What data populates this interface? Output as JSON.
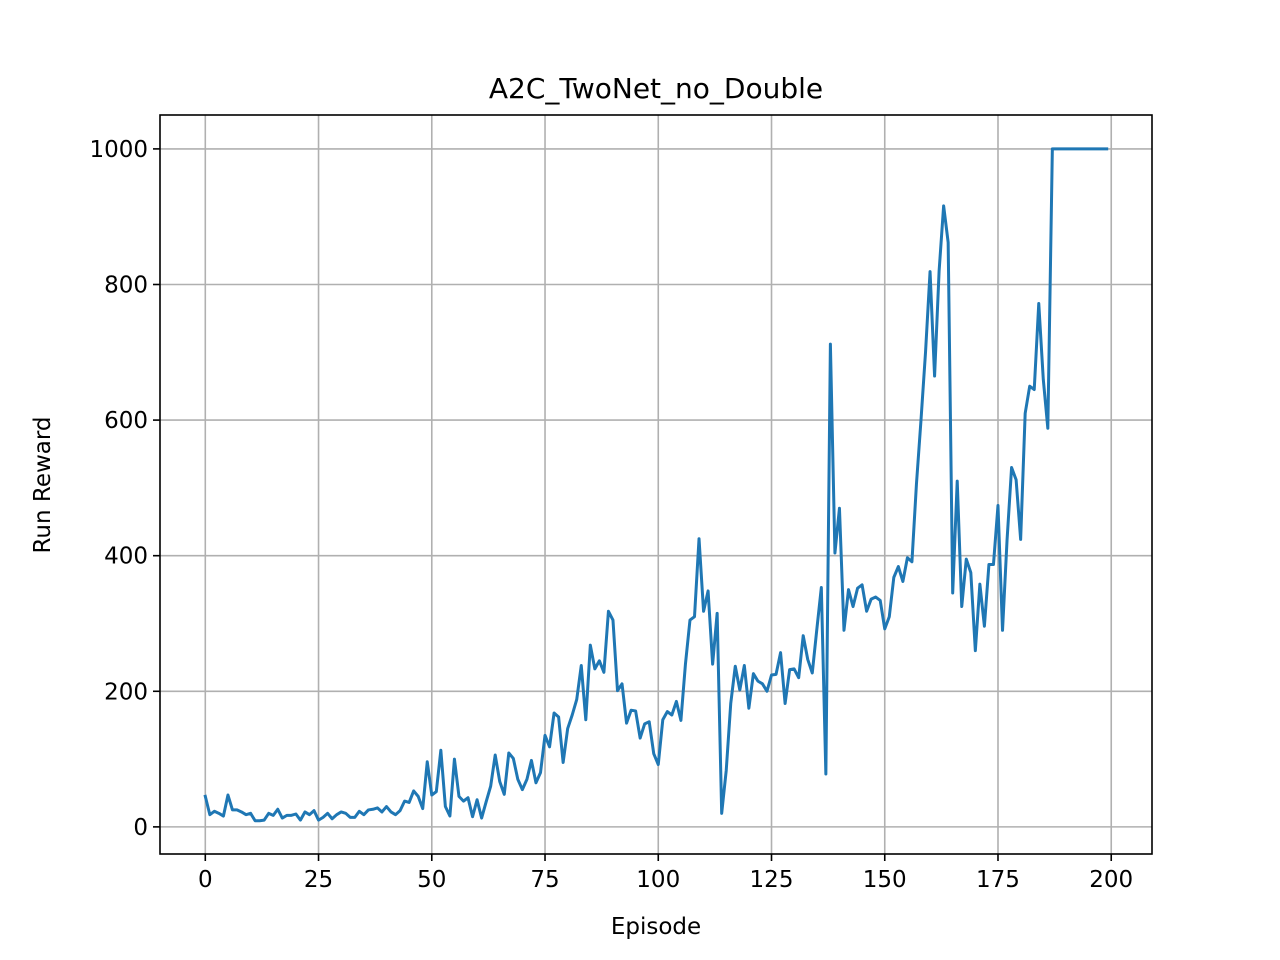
{
  "chart_data": {
    "type": "line",
    "title": "A2C_TwoNet_no_Double",
    "xlabel": "Episode",
    "ylabel": "Run Reward",
    "xlim": [
      -10,
      209
    ],
    "ylim": [
      -40,
      1050
    ],
    "xticks": [
      0,
      25,
      50,
      75,
      100,
      125,
      150,
      175,
      200
    ],
    "yticks": [
      0,
      200,
      400,
      600,
      800,
      1000
    ],
    "grid": true,
    "legend": "none",
    "series_color": "#1f77b4",
    "series": [
      {
        "name": "",
        "x": [
          0,
          1,
          2,
          3,
          4,
          5,
          6,
          7,
          8,
          9,
          10,
          11,
          12,
          13,
          14,
          15,
          16,
          17,
          18,
          19,
          20,
          21,
          22,
          23,
          24,
          25,
          26,
          27,
          28,
          29,
          30,
          31,
          32,
          33,
          34,
          35,
          36,
          37,
          38,
          39,
          40,
          41,
          42,
          43,
          44,
          45,
          46,
          47,
          48,
          49,
          50,
          51,
          52,
          53,
          54,
          55,
          56,
          57,
          58,
          59,
          60,
          61,
          62,
          63,
          64,
          65,
          66,
          67,
          68,
          69,
          70,
          71,
          72,
          73,
          74,
          75,
          76,
          77,
          78,
          79,
          80,
          81,
          82,
          83,
          84,
          85,
          86,
          87,
          88,
          89,
          90,
          91,
          92,
          93,
          94,
          95,
          96,
          97,
          98,
          99,
          100,
          101,
          102,
          103,
          104,
          105,
          106,
          107,
          108,
          109,
          110,
          111,
          112,
          113,
          114,
          115,
          116,
          117,
          118,
          119,
          120,
          121,
          122,
          123,
          124,
          125,
          126,
          127,
          128,
          129,
          130,
          131,
          132,
          133,
          134,
          135,
          136,
          137,
          138,
          139,
          140,
          141,
          142,
          143,
          144,
          145,
          146,
          147,
          148,
          149,
          150,
          151,
          152,
          153,
          154,
          155,
          156,
          157,
          158,
          159,
          160,
          161,
          162,
          163,
          164,
          165,
          166,
          167,
          168,
          169,
          170,
          171,
          172,
          173,
          174,
          175,
          176,
          177,
          178,
          179,
          180,
          181,
          182,
          183,
          184,
          185,
          186,
          187,
          188,
          189,
          190,
          191,
          192,
          193,
          194,
          195,
          196,
          197,
          198,
          199
        ],
        "values": [
          45,
          18,
          23,
          20,
          16,
          47,
          25,
          25,
          22,
          18,
          20,
          9,
          9,
          10,
          20,
          17,
          26,
          13,
          17,
          17,
          19,
          10,
          22,
          18,
          24,
          10,
          14,
          20,
          12,
          18,
          22,
          20,
          14,
          14,
          23,
          18,
          25,
          26,
          28,
          22,
          30,
          22,
          18,
          24,
          38,
          36,
          53,
          45,
          27,
          96,
          47,
          52,
          113,
          30,
          16,
          100,
          45,
          38,
          43,
          15,
          40,
          13,
          37,
          60,
          106,
          67,
          48,
          109,
          101,
          70,
          55,
          70,
          98,
          65,
          80,
          135,
          118,
          168,
          162,
          95,
          145,
          165,
          188,
          238,
          158,
          268,
          233,
          245,
          228,
          318,
          305,
          201,
          211,
          153,
          172,
          171,
          131,
          152,
          155,
          108,
          92,
          158,
          170,
          165,
          185,
          157,
          240,
          305,
          310,
          425,
          318,
          348,
          240,
          315,
          20,
          83,
          182,
          237,
          202,
          238,
          175,
          226,
          215,
          211,
          200,
          224,
          225,
          257,
          182,
          232,
          233,
          220,
          282,
          247,
          227,
          291,
          353,
          78,
          712,
          404,
          470,
          290,
          350,
          325,
          352,
          357,
          318,
          336,
          339,
          334,
          292,
          310,
          368,
          384,
          362,
          397,
          391,
          506,
          600,
          700,
          819,
          665,
          820,
          916,
          862,
          345,
          510,
          325,
          395,
          375,
          260,
          358,
          296,
          387,
          387,
          474,
          290,
          423,
          530,
          512,
          424,
          610,
          650,
          645,
          772,
          660,
          588,
          1000,
          1000,
          1000,
          1000,
          1000,
          1000,
          1000,
          1000,
          1000,
          1000,
          1000,
          1000,
          1000
        ]
      }
    ]
  }
}
